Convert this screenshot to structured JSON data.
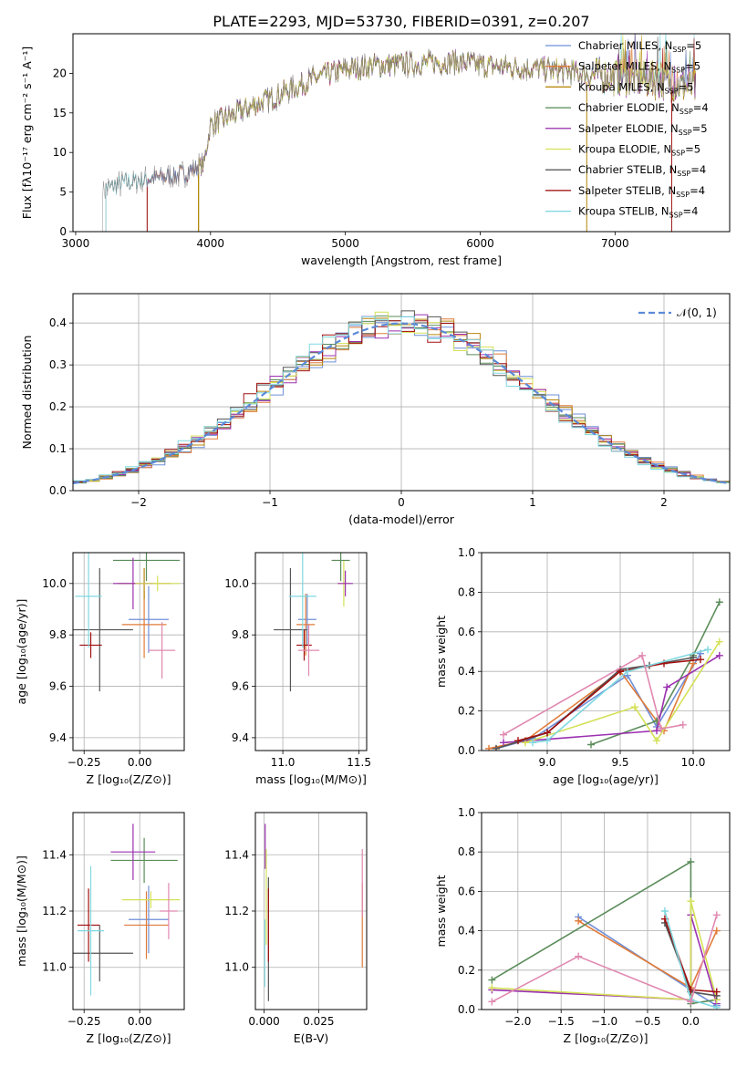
{
  "title": "PLATE=2293, MJD=53730, FIBERID=0391, z=0.207",
  "colors": {
    "Chabrier MILES": "#6f8fd8",
    "Salpeter MILES": "#e07b39",
    "Kroupa MILES": "#b8860b",
    "Chabrier ELODIE": "#5b8c5a",
    "Salpeter ELODIE": "#9b30b0",
    "Kroupa ELODIE": "#d4e157",
    "Chabrier STELIB": "#555555",
    "Salpeter STELIB": "#a01010",
    "Kroupa STELIB": "#80d8e0",
    "pink": "#e088b0",
    "gauss": "#5b8ad8"
  },
  "chart_data": [
    {
      "id": "spectrum",
      "type": "line",
      "title": "PLATE=2293, MJD=53730, FIBERID=0391, z=0.207",
      "xlabel": "wavelength [Angstrom, rest frame]",
      "ylabel": "Flux [fλ10⁻¹⁷ erg cm⁻² s⁻¹ A⁻¹]",
      "xlim": [
        2980,
        7850
      ],
      "ylim": [
        0,
        25
      ],
      "xticks": [
        3000,
        4000,
        5000,
        6000,
        7000
      ],
      "yticks": [
        0,
        5,
        10,
        15,
        20
      ],
      "legend_position": "top-right",
      "legend": [
        {
          "label": "Chabrier MILES, N",
          "sub": "SSP",
          "tail": "=5"
        },
        {
          "label": "Salpeter MILES, N",
          "sub": "SSP",
          "tail": "=5"
        },
        {
          "label": "Kroupa MILES, N",
          "sub": "SSP",
          "tail": "=5"
        },
        {
          "label": "Chabrier ELODIE, N",
          "sub": "SSP",
          "tail": "=4"
        },
        {
          "label": "Salpeter ELODIE, N",
          "sub": "SSP",
          "tail": "=5"
        },
        {
          "label": "Kroupa ELODIE, N",
          "sub": "SSP",
          "tail": "=5"
        },
        {
          "label": "Chabrier STELIB, N",
          "sub": "SSP",
          "tail": "=4"
        },
        {
          "label": "Salpeter STELIB, N",
          "sub": "SSP",
          "tail": "=4"
        },
        {
          "label": "Kroupa STELIB, N",
          "sub": "SSP",
          "tail": "=4"
        }
      ],
      "continuum": [
        [
          3200,
          5.3
        ],
        [
          3400,
          6.3
        ],
        [
          3600,
          6.8
        ],
        [
          3800,
          7.3
        ],
        [
          3950,
          8.5
        ],
        [
          4000,
          13.5
        ],
        [
          4200,
          15.0
        ],
        [
          4400,
          16.5
        ],
        [
          4600,
          18.0
        ],
        [
          4800,
          19.5
        ],
        [
          5000,
          20.5
        ],
        [
          5200,
          21.0
        ],
        [
          5500,
          21.2
        ],
        [
          5800,
          21.5
        ],
        [
          6000,
          21.0
        ],
        [
          6200,
          20.8
        ],
        [
          6500,
          20.5
        ],
        [
          7000,
          19.5
        ],
        [
          7400,
          18.8
        ],
        [
          7600,
          18.0
        ]
      ],
      "model_start": [
        {
          "model": "Chabrier MILES",
          "x": 3530
        },
        {
          "model": "Salpeter MILES",
          "x": 3530
        },
        {
          "model": "Kroupa MILES",
          "x": 3910
        },
        {
          "model": "Chabrier ELODIE",
          "x": 3910
        },
        {
          "model": "Salpeter ELODIE",
          "x": 3910
        },
        {
          "model": "Kroupa ELODIE",
          "x": 3910
        },
        {
          "model": "Chabrier STELIB",
          "x": 3220
        },
        {
          "model": "Salpeter STELIB",
          "x": 3530
        },
        {
          "model": "Kroupa STELIB",
          "x": 3220
        }
      ]
    },
    {
      "id": "histogram",
      "type": "bar",
      "xlabel": "(data-model)/error",
      "ylabel": "Normed distribution",
      "xlim": [
        -2.5,
        2.5
      ],
      "ylim": [
        0,
        0.47
      ],
      "xticks": [
        -2,
        -1,
        0,
        1,
        2
      ],
      "yticks": [
        0.0,
        0.1,
        0.2,
        0.3,
        0.4
      ],
      "legend_position": "top-right",
      "legend": [
        {
          "label": "𝒩(0, 1)"
        }
      ],
      "bin_width": 0.1,
      "series_count": 9
    },
    {
      "id": "age-vs-Z",
      "type": "scatter",
      "xlabel": "Z [log₁₀(Z/Z⊙)]",
      "ylabel": "age  [log₁₀(age/yr)]",
      "xlim": [
        -0.3,
        0.2
      ],
      "ylim": [
        9.35,
        10.12
      ],
      "xticks": [
        -0.25,
        0.0
      ],
      "yticks": [
        9.4,
        9.6,
        9.8,
        10.0
      ],
      "points": [
        {
          "model": "Chabrier MILES",
          "x": 0.04,
          "y": 9.86,
          "xerr": 0.09,
          "yerr": 0.13
        },
        {
          "model": "Salpeter MILES",
          "x": 0.02,
          "y": 9.84,
          "xerr": 0.1,
          "yerr": 0.13
        },
        {
          "model": "Kroupa MILES",
          "x": 0.02,
          "y": 10.0,
          "xerr": 0.12,
          "yerr": 0.06
        },
        {
          "model": "Chabrier ELODIE",
          "x": 0.03,
          "y": 10.09,
          "xerr": 0.15,
          "yerr": 0.08
        },
        {
          "model": "Salpeter ELODIE",
          "x": -0.03,
          "y": 10.0,
          "xerr": 0.09,
          "yerr": 0.1
        },
        {
          "model": "Kroupa ELODIE",
          "x": 0.08,
          "y": 10.0,
          "xerr": 0.1,
          "yerr": 0.03
        },
        {
          "model": "Chabrier STELIB",
          "x": -0.18,
          "y": 9.82,
          "xerr": 0.15,
          "yerr": 0.24
        },
        {
          "model": "Salpeter STELIB",
          "x": -0.22,
          "y": 9.76,
          "xerr": 0.05,
          "yerr": 0.05
        },
        {
          "model": "Kroupa STELIB",
          "x": -0.23,
          "y": 9.95,
          "xerr": 0.06,
          "yerr": 0.2
        },
        {
          "model": "pink",
          "x": 0.1,
          "y": 9.74,
          "xerr": 0.06,
          "yerr": 0.11
        }
      ]
    },
    {
      "id": "age-vs-mass",
      "type": "scatter",
      "xlabel": "mass [log₁₀(M/M⊙)]",
      "ylabel": "",
      "xlim": [
        10.82,
        11.55
      ],
      "ylim": [
        9.35,
        10.12
      ],
      "xticks": [
        11.0,
        11.5
      ],
      "yticks": [
        9.4,
        9.6,
        9.8,
        10.0
      ],
      "points": [
        {
          "model": "Chabrier MILES",
          "x": 11.16,
          "y": 9.86,
          "xerr": 0.06,
          "yerr": 0.1
        },
        {
          "model": "Salpeter MILES",
          "x": 11.15,
          "y": 9.84,
          "xerr": 0.06,
          "yerr": 0.12
        },
        {
          "model": "Kroupa ELODIE",
          "x": 11.4,
          "y": 10.0,
          "xerr": 0.04,
          "yerr": 0.09
        },
        {
          "model": "Chabrier ELODIE",
          "x": 11.38,
          "y": 10.09,
          "xerr": 0.06,
          "yerr": 0.08
        },
        {
          "model": "Salpeter ELODIE",
          "x": 11.41,
          "y": 10.0,
          "xerr": 0.05,
          "yerr": 0.05
        },
        {
          "model": "Chabrier STELIB",
          "x": 11.05,
          "y": 9.82,
          "xerr": 0.11,
          "yerr": 0.24
        },
        {
          "model": "Salpeter STELIB",
          "x": 11.14,
          "y": 9.76,
          "xerr": 0.05,
          "yerr": 0.06
        },
        {
          "model": "Kroupa STELIB",
          "x": 11.13,
          "y": 9.95,
          "xerr": 0.09,
          "yerr": 0.2
        },
        {
          "model": "pink",
          "x": 11.17,
          "y": 9.74,
          "xerr": 0.07,
          "yerr": 0.1
        }
      ]
    },
    {
      "id": "weight-vs-age",
      "type": "line",
      "xlabel": "age  [log₁₀(age/yr)]",
      "ylabel": "mass weight",
      "xlim": [
        8.55,
        10.25
      ],
      "ylim": [
        0.0,
        1.0
      ],
      "xticks": [
        9.0,
        9.5,
        10.0
      ],
      "yticks": [
        0.0,
        0.2,
        0.4,
        0.6,
        0.8,
        1.0
      ],
      "series": [
        {
          "model": "Chabrier MILES",
          "x": [
            8.65,
            8.9,
            9.55,
            9.75,
            10.05
          ],
          "y": [
            0.01,
            0.06,
            0.38,
            0.12,
            0.49
          ]
        },
        {
          "model": "Salpeter MILES",
          "x": [
            8.6,
            8.85,
            9.5,
            9.8,
            10.0
          ],
          "y": [
            0.01,
            0.05,
            0.4,
            0.1,
            0.44
          ]
        },
        {
          "model": "Chabrier ELODIE",
          "x": [
            9.3,
            9.75,
            10.0,
            10.18
          ],
          "y": [
            0.03,
            0.15,
            0.48,
            0.75
          ]
        },
        {
          "model": "Salpeter ELODIE",
          "x": [
            8.7,
            9.75,
            9.82,
            10.18
          ],
          "y": [
            0.04,
            0.1,
            0.32,
            0.48
          ]
        },
        {
          "model": "Kroupa ELODIE",
          "x": [
            8.85,
            9.6,
            9.75,
            10.18
          ],
          "y": [
            0.04,
            0.22,
            0.05,
            0.55
          ]
        },
        {
          "model": "Chabrier STELIB",
          "x": [
            8.65,
            9.0,
            9.5,
            9.7,
            10.0
          ],
          "y": [
            0.01,
            0.09,
            0.41,
            0.43,
            0.47
          ]
        },
        {
          "model": "Salpeter STELIB",
          "x": [
            8.8,
            9.0,
            9.5,
            9.8,
            10.05
          ],
          "y": [
            0.05,
            0.09,
            0.4,
            0.44,
            0.46
          ]
        },
        {
          "model": "Kroupa STELIB",
          "x": [
            8.9,
            9.0,
            9.55,
            10.1
          ],
          "y": [
            0.04,
            0.05,
            0.4,
            0.51
          ]
        },
        {
          "model": "pink",
          "x": [
            8.7,
            9.65,
            9.78,
            9.93
          ],
          "y": [
            0.08,
            0.48,
            0.11,
            0.13
          ]
        }
      ]
    },
    {
      "id": "mass-vs-Z",
      "type": "scatter",
      "xlabel": "Z [log₁₀(Z/Z⊙)]",
      "ylabel": "mass [log₁₀(M/M⊙)]",
      "xlim": [
        -0.3,
        0.2
      ],
      "ylim": [
        10.85,
        11.55
      ],
      "xticks": [
        -0.25,
        0.0
      ],
      "yticks": [
        11.0,
        11.2,
        11.4
      ],
      "points": [
        {
          "model": "Chabrier MILES",
          "x": 0.04,
          "y": 11.17,
          "xerr": 0.09,
          "yerr": 0.12
        },
        {
          "model": "Salpeter MILES",
          "x": 0.03,
          "y": 11.15,
          "xerr": 0.1,
          "yerr": 0.12
        },
        {
          "model": "Chabrier ELODIE",
          "x": 0.02,
          "y": 11.38,
          "xerr": 0.15,
          "yerr": 0.08
        },
        {
          "model": "Salpeter ELODIE",
          "x": -0.03,
          "y": 11.41,
          "xerr": 0.1,
          "yerr": 0.1
        },
        {
          "model": "Kroupa ELODIE",
          "x": 0.05,
          "y": 11.24,
          "xerr": 0.13,
          "yerr": 0.03
        },
        {
          "model": "Chabrier STELIB",
          "x": -0.18,
          "y": 11.05,
          "xerr": 0.15,
          "yerr": 0.1
        },
        {
          "model": "Salpeter STELIB",
          "x": -0.23,
          "y": 11.15,
          "xerr": 0.05,
          "yerr": 0.13
        },
        {
          "model": "Kroupa STELIB",
          "x": -0.22,
          "y": 11.13,
          "xerr": 0.06,
          "yerr": 0.23
        },
        {
          "model": "pink",
          "x": 0.13,
          "y": 11.2,
          "xerr": 0.04,
          "yerr": 0.1
        }
      ]
    },
    {
      "id": "mass-vs-EBV",
      "type": "scatter",
      "xlabel": "E(B-V)",
      "ylabel": "",
      "xlim": [
        -0.004,
        0.047
      ],
      "ylim": [
        10.85,
        11.55
      ],
      "xticks": [
        0.0,
        0.025
      ],
      "xtick_labels": [
        "0.000",
        "0.025"
      ],
      "yticks": [
        11.0,
        11.2,
        11.4
      ],
      "points": [
        {
          "model": "Salpeter ELODIE",
          "x": 0.0005,
          "y": 11.43,
          "yerr": 0.08
        },
        {
          "model": "Kroupa ELODIE",
          "x": 0.001,
          "y": 11.25,
          "yerr": 0.17
        },
        {
          "model": "Kroupa STELIB",
          "x": 0.0003,
          "y": 11.05,
          "yerr": 0.12
        },
        {
          "model": "Chabrier STELIB",
          "x": 0.002,
          "y": 11.1,
          "yerr": 0.22
        },
        {
          "model": "Salpeter STELIB",
          "x": 0.002,
          "y": 11.15,
          "yerr": 0.13
        },
        {
          "model": "Salpeter MILES",
          "x": 0.045,
          "y": 11.15,
          "yerr": 0.15
        },
        {
          "model": "pink",
          "x": 0.045,
          "y": 11.3,
          "yerr": 0.12
        }
      ]
    },
    {
      "id": "weight-vs-Z",
      "type": "line",
      "xlabel": "Z [log₁₀(Z/Z⊙)]",
      "ylabel": "mass weight",
      "xlim": [
        -2.42,
        0.45
      ],
      "ylim": [
        0.0,
        1.0
      ],
      "xticks": [
        -2.0,
        -1.5,
        -1.0,
        -0.5,
        0.0
      ],
      "yticks": [
        0.0,
        0.2,
        0.4,
        0.6,
        0.8,
        1.0
      ],
      "series": [
        {
          "model": "Chabrier MILES",
          "x": [
            -1.3,
            0.0,
            0.3
          ],
          "y": [
            0.47,
            0.1,
            0.02
          ]
        },
        {
          "model": "Salpeter MILES",
          "x": [
            -1.3,
            0.0,
            0.3
          ],
          "y": [
            0.45,
            0.11,
            0.4
          ]
        },
        {
          "model": "Chabrier ELODIE",
          "x": [
            -2.3,
            0.0,
            0.0,
            0.3
          ],
          "y": [
            0.15,
            0.75,
            0.03,
            0.05
          ]
        },
        {
          "model": "Salpeter ELODIE",
          "x": [
            -2.3,
            0.0,
            0.0,
            0.3
          ],
          "y": [
            0.1,
            0.05,
            0.48,
            0.03
          ]
        },
        {
          "model": "Kroupa ELODIE",
          "x": [
            -2.3,
            0.0,
            0.0,
            0.3
          ],
          "y": [
            0.11,
            0.05,
            0.55,
            0.05
          ]
        },
        {
          "model": "Chabrier STELIB",
          "x": [
            -0.3,
            0.0,
            0.3
          ],
          "y": [
            0.44,
            0.09,
            0.07
          ]
        },
        {
          "model": "Salpeter STELIB",
          "x": [
            -0.3,
            0.0,
            0.3
          ],
          "y": [
            0.46,
            0.1,
            0.09
          ]
        },
        {
          "model": "Kroupa STELIB",
          "x": [
            -0.3,
            0.0,
            0.3
          ],
          "y": [
            0.5,
            0.05,
            0.01
          ]
        },
        {
          "model": "pink",
          "x": [
            -2.3,
            -1.3,
            0.0,
            0.3
          ],
          "y": [
            0.04,
            0.27,
            0.04,
            0.48
          ]
        }
      ]
    }
  ]
}
